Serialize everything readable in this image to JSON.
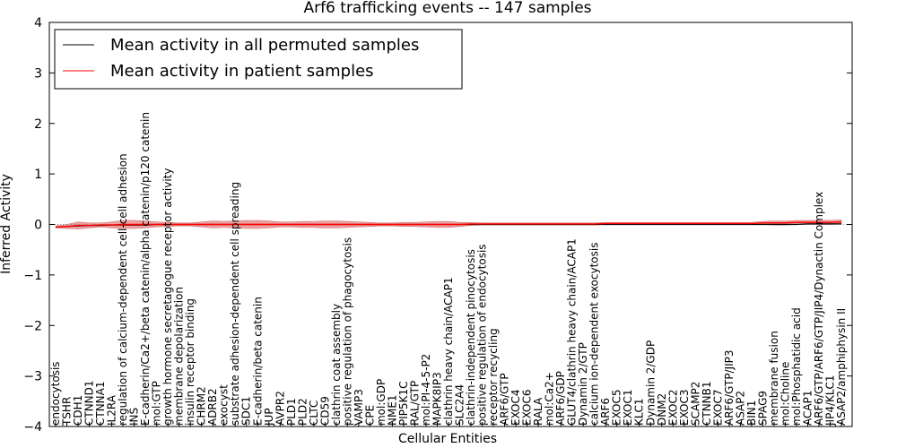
{
  "chart_data": {
    "type": "line",
    "title": "Arf6 trafficking events -- 147 samples",
    "xlabel": "Cellular Entities",
    "ylabel": "Inferred Activity",
    "ylim": [
      -4,
      4
    ],
    "yticks": [
      "4",
      "3",
      "2",
      "1",
      "0",
      "−1",
      "−2",
      "−3",
      "−4"
    ],
    "grid": false,
    "legend_position": "top-left",
    "categories": [
      "endocytosis",
      "TSHR",
      "CDH1",
      "CTNND1",
      "CTNNA1",
      "IL2RA",
      "regulation of calcium-dependent cell-cell adhesion",
      "INS",
      "E-cadherin/Ca2+/beta catenin/alpha catenin/p120 catenin",
      "mol:GTP",
      "growth hormone secretagogue receptor activity",
      "membrane depolarization",
      "insulin receptor binding",
      "CHRM2",
      "ADRB2",
      "exocyst",
      "substrate adhesion-dependent cell spreading",
      "SDC1",
      "E-cadherin/beta catenin",
      "JUP",
      "AVPR2",
      "PLD1",
      "PLD2",
      "CLTC",
      "CD59",
      "clathrin coat assembly",
      "positive regulation of phagocytosis",
      "VAMP3",
      "CPE",
      "mol:GDP",
      "NME1",
      "PIP5K1C",
      "RAL/GTP",
      "mol:PI-4-5-P2",
      "MAPK8IP3",
      "clathrin heavy chain/ACAP1",
      "SLC2A4",
      "clathrin-independent pinocytosis",
      "positive regulation of endocytosis",
      "receptor recycling",
      "ARF6/GTP",
      "EXOC4",
      "EXOC6",
      "RALA",
      "mol:Ca2+",
      "ARF6/GDP",
      "GLUT4/clathrin heavy chain/ACAP1",
      "Dynamin 2/GTP",
      "calcium ion-dependent exocytosis",
      "ARF6",
      "EXOC5",
      "EXOC1",
      "KLC1",
      "Dynamin 2/GDP",
      "DNM2",
      "EXOC2",
      "EXOC3",
      "SCAMP2",
      "CTNNB1",
      "EXOC7",
      "ARF6/GTP/JIP3",
      "ASAP2",
      "BIN1",
      "SPAG9",
      "membrane fusion",
      "mol:Choline",
      "mol:Phosphatidic acid",
      "ACAP1",
      "ARF6/GTP/ARF6/GTP/JIP4/Dynactin Complex",
      "JIP4/KLC1",
      "ASAP2/amphiphysin II"
    ],
    "series": [
      {
        "name": "Mean activity in all permuted samples",
        "color": "#000000",
        "values": [
          -0.05,
          -0.04,
          -0.03,
          -0.02,
          -0.02,
          -0.01,
          -0.01,
          -0.01,
          -0.01,
          0,
          0,
          0,
          0,
          0,
          0,
          0,
          0,
          0,
          0,
          0,
          0,
          0,
          0,
          0,
          0,
          0,
          0,
          0,
          0,
          0,
          0,
          0,
          0,
          0,
          0,
          0,
          0,
          0,
          0,
          0,
          0,
          0,
          0,
          0,
          0,
          0,
          0,
          0,
          0,
          0,
          0,
          0,
          0,
          0,
          0,
          0,
          0,
          0,
          0,
          0,
          0,
          0,
          0,
          0,
          0,
          0,
          0,
          0.01,
          0.01,
          0.01,
          0.01
        ]
      },
      {
        "name": "Mean activity in patient samples",
        "color": "#ff0000",
        "band_color": "#e88080",
        "values": [
          -0.05,
          -0.04,
          -0.02,
          -0.02,
          -0.01,
          -0.01,
          0,
          0,
          0,
          0,
          0,
          0,
          0,
          0,
          0,
          0,
          0,
          0,
          0,
          0,
          0,
          0,
          0,
          0,
          0,
          0,
          0,
          0,
          0,
          0,
          0,
          0,
          0,
          0,
          0,
          0,
          0,
          0.01,
          0.01,
          0.01,
          0.01,
          0.01,
          0.01,
          0.01,
          0.01,
          0.01,
          0.01,
          0.01,
          0.01,
          0.02,
          0.02,
          0.02,
          0.02,
          0.02,
          0.02,
          0.02,
          0.02,
          0.02,
          0.02,
          0.02,
          0.02,
          0.02,
          0.02,
          0.03,
          0.03,
          0.03,
          0.04,
          0.04,
          0.04,
          0.04,
          0.05
        ],
        "band_halfwidth": [
          0.02,
          0.04,
          0.07,
          0.05,
          0.04,
          0.06,
          0.08,
          0.08,
          0.07,
          0.05,
          0.04,
          0.03,
          0.03,
          0.05,
          0.07,
          0.06,
          0.07,
          0.08,
          0.08,
          0.07,
          0.05,
          0.05,
          0.06,
          0.06,
          0.07,
          0.07,
          0.06,
          0.05,
          0.04,
          0.03,
          0.03,
          0.04,
          0.04,
          0.05,
          0.06,
          0.06,
          0.04,
          0.03,
          0.02,
          0.02,
          0.02,
          0.02,
          0.02,
          0.02,
          0.02,
          0.02,
          0.02,
          0.02,
          0.02,
          0.02,
          0.02,
          0.02,
          0.02,
          0.02,
          0.02,
          0.02,
          0.02,
          0.02,
          0.02,
          0.02,
          0.02,
          0.02,
          0.02,
          0.03,
          0.04,
          0.04,
          0.04,
          0.04,
          0.04,
          0.04,
          0.04
        ]
      }
    ]
  }
}
